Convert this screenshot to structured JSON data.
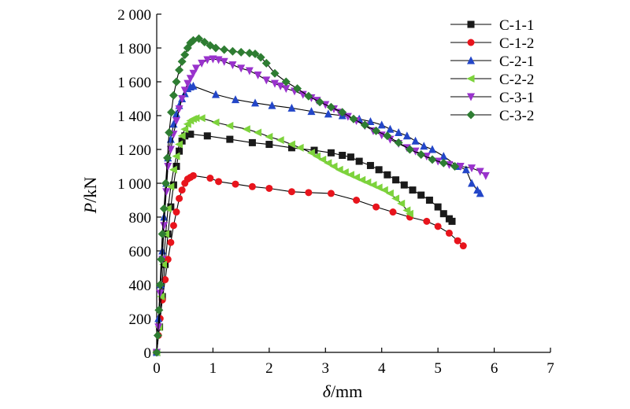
{
  "chart_data": {
    "type": "line",
    "xlabel": {
      "symbol": "δ",
      "unit": "/mm"
    },
    "ylabel": {
      "symbol": "P",
      "unit": "/kN"
    },
    "xlim": [
      0,
      7
    ],
    "ylim": [
      0,
      2000
    ],
    "xticks": [
      0,
      1,
      2,
      3,
      4,
      5,
      6,
      7
    ],
    "yticks": [
      0,
      200,
      400,
      600,
      800,
      1000,
      1200,
      1400,
      1600,
      1800,
      2000
    ],
    "xtick_labels": [
      "0",
      "1",
      "2",
      "3",
      "4",
      "5",
      "6",
      "7"
    ],
    "ytick_labels": [
      "0",
      "200",
      "400",
      "600",
      "800",
      "1 000",
      "1 200",
      "1 400",
      "1 600",
      "1 800",
      "2 000"
    ],
    "grid": false,
    "legend_position": "top-right",
    "series": [
      {
        "name": "C-1-1",
        "color": "#1a1a1a",
        "marker": "square",
        "points": [
          [
            0,
            0
          ],
          [
            0.05,
            150
          ],
          [
            0.1,
            330
          ],
          [
            0.15,
            520
          ],
          [
            0.2,
            700
          ],
          [
            0.25,
            860
          ],
          [
            0.3,
            990
          ],
          [
            0.35,
            1100
          ],
          [
            0.4,
            1190
          ],
          [
            0.45,
            1250
          ],
          [
            0.5,
            1280
          ],
          [
            0.6,
            1290
          ],
          [
            0.9,
            1280
          ],
          [
            1.3,
            1260
          ],
          [
            1.7,
            1240
          ],
          [
            2.0,
            1230
          ],
          [
            2.4,
            1210
          ],
          [
            2.8,
            1195
          ],
          [
            3.1,
            1180
          ],
          [
            3.3,
            1165
          ],
          [
            3.45,
            1155
          ],
          [
            3.6,
            1130
          ],
          [
            3.8,
            1105
          ],
          [
            3.95,
            1080
          ],
          [
            4.1,
            1050
          ],
          [
            4.25,
            1020
          ],
          [
            4.4,
            990
          ],
          [
            4.55,
            960
          ],
          [
            4.7,
            930
          ],
          [
            4.85,
            900
          ],
          [
            5.0,
            860
          ],
          [
            5.1,
            820
          ],
          [
            5.2,
            790
          ],
          [
            5.25,
            775
          ]
        ]
      },
      {
        "name": "C-1-2",
        "color": "#e8141c",
        "marker": "circle",
        "points": [
          [
            0,
            0
          ],
          [
            0.03,
            100
          ],
          [
            0.06,
            200
          ],
          [
            0.1,
            310
          ],
          [
            0.15,
            430
          ],
          [
            0.2,
            550
          ],
          [
            0.25,
            650
          ],
          [
            0.3,
            750
          ],
          [
            0.35,
            830
          ],
          [
            0.4,
            910
          ],
          [
            0.45,
            960
          ],
          [
            0.5,
            1000
          ],
          [
            0.55,
            1025
          ],
          [
            0.6,
            1035
          ],
          [
            0.65,
            1045
          ],
          [
            0.95,
            1030
          ],
          [
            1.1,
            1010
          ],
          [
            1.4,
            995
          ],
          [
            1.7,
            980
          ],
          [
            2.0,
            970
          ],
          [
            2.4,
            950
          ],
          [
            2.7,
            945
          ],
          [
            3.1,
            940
          ],
          [
            3.55,
            900
          ],
          [
            3.9,
            860
          ],
          [
            4.2,
            830
          ],
          [
            4.5,
            800
          ],
          [
            4.8,
            775
          ],
          [
            5.0,
            745
          ],
          [
            5.2,
            705
          ],
          [
            5.35,
            660
          ],
          [
            5.45,
            630
          ]
        ]
      },
      {
        "name": "C-2-1",
        "color": "#2346c8",
        "marker": "triangle-up",
        "points": [
          [
            0,
            0
          ],
          [
            0.03,
            200
          ],
          [
            0.07,
            400
          ],
          [
            0.1,
            600
          ],
          [
            0.13,
            800
          ],
          [
            0.17,
            1000
          ],
          [
            0.2,
            1150
          ],
          [
            0.25,
            1260
          ],
          [
            0.3,
            1350
          ],
          [
            0.35,
            1410
          ],
          [
            0.4,
            1460
          ],
          [
            0.45,
            1500
          ],
          [
            0.5,
            1530
          ],
          [
            0.55,
            1560
          ],
          [
            0.6,
            1570
          ],
          [
            0.65,
            1575
          ],
          [
            1.05,
            1525
          ],
          [
            1.4,
            1495
          ],
          [
            1.75,
            1475
          ],
          [
            2.05,
            1460
          ],
          [
            2.4,
            1445
          ],
          [
            2.75,
            1425
          ],
          [
            3.05,
            1410
          ],
          [
            3.3,
            1400
          ],
          [
            3.6,
            1380
          ],
          [
            3.8,
            1365
          ],
          [
            4.0,
            1345
          ],
          [
            4.15,
            1320
          ],
          [
            4.3,
            1300
          ],
          [
            4.45,
            1280
          ],
          [
            4.6,
            1250
          ],
          [
            4.75,
            1220
          ],
          [
            4.9,
            1200
          ],
          [
            5.1,
            1160
          ],
          [
            5.35,
            1100
          ],
          [
            5.5,
            1080
          ],
          [
            5.6,
            1000
          ],
          [
            5.7,
            960
          ],
          [
            5.75,
            940
          ]
        ]
      },
      {
        "name": "C-2-2",
        "color": "#7dd33c",
        "marker": "triangle-left",
        "points": [
          [
            0,
            0
          ],
          [
            0.04,
            150
          ],
          [
            0.08,
            330
          ],
          [
            0.12,
            520
          ],
          [
            0.16,
            700
          ],
          [
            0.2,
            850
          ],
          [
            0.25,
            980
          ],
          [
            0.3,
            1080
          ],
          [
            0.35,
            1160
          ],
          [
            0.4,
            1230
          ],
          [
            0.45,
            1280
          ],
          [
            0.5,
            1320
          ],
          [
            0.55,
            1350
          ],
          [
            0.6,
            1370
          ],
          [
            0.65,
            1380
          ],
          [
            0.7,
            1385
          ],
          [
            0.8,
            1385
          ],
          [
            1.05,
            1360
          ],
          [
            1.3,
            1340
          ],
          [
            1.6,
            1320
          ],
          [
            1.8,
            1300
          ],
          [
            2.0,
            1275
          ],
          [
            2.2,
            1255
          ],
          [
            2.4,
            1230
          ],
          [
            2.55,
            1210
          ],
          [
            2.75,
            1180
          ],
          [
            2.85,
            1160
          ],
          [
            2.95,
            1140
          ],
          [
            3.05,
            1120
          ],
          [
            3.15,
            1100
          ],
          [
            3.25,
            1080
          ],
          [
            3.35,
            1065
          ],
          [
            3.45,
            1050
          ],
          [
            3.55,
            1035
          ],
          [
            3.65,
            1020
          ],
          [
            3.75,
            1005
          ],
          [
            3.85,
            990
          ],
          [
            3.95,
            975
          ],
          [
            4.05,
            960
          ],
          [
            4.15,
            940
          ],
          [
            4.25,
            910
          ],
          [
            4.35,
            880
          ],
          [
            4.45,
            840
          ],
          [
            4.5,
            820
          ]
        ]
      },
      {
        "name": "C-3-1",
        "color": "#9932cc",
        "marker": "triangle-down",
        "points": [
          [
            0,
            0
          ],
          [
            0.03,
            150
          ],
          [
            0.06,
            350
          ],
          [
            0.1,
            550
          ],
          [
            0.13,
            750
          ],
          [
            0.17,
            950
          ],
          [
            0.2,
            1100
          ],
          [
            0.25,
            1200
          ],
          [
            0.3,
            1290
          ],
          [
            0.35,
            1370
          ],
          [
            0.4,
            1440
          ],
          [
            0.45,
            1500
          ],
          [
            0.5,
            1550
          ],
          [
            0.55,
            1590
          ],
          [
            0.6,
            1620
          ],
          [
            0.65,
            1650
          ],
          [
            0.7,
            1680
          ],
          [
            0.8,
            1710
          ],
          [
            0.9,
            1730
          ],
          [
            1.0,
            1735
          ],
          [
            1.1,
            1730
          ],
          [
            1.2,
            1720
          ],
          [
            1.35,
            1700
          ],
          [
            1.5,
            1680
          ],
          [
            1.65,
            1665
          ],
          [
            1.8,
            1640
          ],
          [
            1.95,
            1610
          ],
          [
            2.1,
            1590
          ],
          [
            2.2,
            1575
          ],
          [
            2.3,
            1560
          ],
          [
            2.45,
            1545
          ],
          [
            2.6,
            1525
          ],
          [
            2.75,
            1505
          ],
          [
            2.85,
            1490
          ],
          [
            3.0,
            1465
          ],
          [
            3.15,
            1440
          ],
          [
            3.25,
            1420
          ],
          [
            3.4,
            1395
          ],
          [
            3.55,
            1370
          ],
          [
            3.7,
            1340
          ],
          [
            3.85,
            1310
          ],
          [
            4.0,
            1285
          ],
          [
            4.15,
            1260
          ],
          [
            4.3,
            1235
          ],
          [
            4.45,
            1210
          ],
          [
            4.6,
            1190
          ],
          [
            4.8,
            1160
          ],
          [
            5.0,
            1130
          ],
          [
            5.2,
            1110
          ],
          [
            5.4,
            1100
          ],
          [
            5.6,
            1090
          ],
          [
            5.75,
            1070
          ],
          [
            5.85,
            1045
          ]
        ]
      },
      {
        "name": "C-3-2",
        "color": "#2e7d32",
        "marker": "diamond",
        "points": [
          [
            0,
            0
          ],
          [
            0.02,
            100
          ],
          [
            0.04,
            250
          ],
          [
            0.06,
            400
          ],
          [
            0.08,
            550
          ],
          [
            0.1,
            700
          ],
          [
            0.13,
            850
          ],
          [
            0.16,
            1000
          ],
          [
            0.19,
            1150
          ],
          [
            0.22,
            1300
          ],
          [
            0.26,
            1420
          ],
          [
            0.3,
            1520
          ],
          [
            0.35,
            1600
          ],
          [
            0.4,
            1670
          ],
          [
            0.45,
            1720
          ],
          [
            0.5,
            1760
          ],
          [
            0.55,
            1800
          ],
          [
            0.6,
            1830
          ],
          [
            0.65,
            1845
          ],
          [
            0.75,
            1855
          ],
          [
            0.85,
            1835
          ],
          [
            0.95,
            1815
          ],
          [
            1.05,
            1800
          ],
          [
            1.2,
            1790
          ],
          [
            1.35,
            1780
          ],
          [
            1.5,
            1775
          ],
          [
            1.65,
            1770
          ],
          [
            1.75,
            1765
          ],
          [
            1.85,
            1745
          ],
          [
            1.95,
            1710
          ],
          [
            2.1,
            1650
          ],
          [
            2.3,
            1600
          ],
          [
            2.5,
            1560
          ],
          [
            2.7,
            1515
          ],
          [
            2.9,
            1480
          ],
          [
            3.1,
            1450
          ],
          [
            3.3,
            1420
          ],
          [
            3.5,
            1380
          ],
          [
            3.7,
            1345
          ],
          [
            3.9,
            1310
          ],
          [
            4.1,
            1280
          ],
          [
            4.3,
            1240
          ],
          [
            4.5,
            1200
          ],
          [
            4.7,
            1170
          ],
          [
            4.9,
            1140
          ],
          [
            5.1,
            1120
          ],
          [
            5.3,
            1100
          ]
        ]
      }
    ]
  }
}
